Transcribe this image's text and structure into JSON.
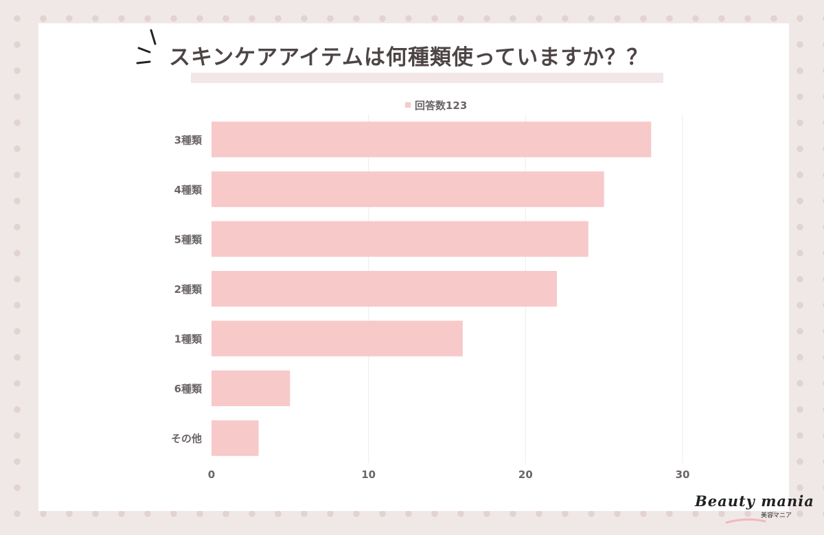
{
  "title": "スキンケアアイテムは何種類使っていますか？？",
  "chart_data": {
    "type": "bar",
    "orientation": "horizontal",
    "categories": [
      "3種類",
      "4種類",
      "5種類",
      "2種類",
      "1種類",
      "6種類",
      "その他"
    ],
    "series": [
      {
        "name": "回答数123",
        "values": [
          28,
          25,
          24,
          22,
          16,
          5,
          3
        ]
      }
    ],
    "xlim": [
      0,
      30
    ],
    "xticks": [
      0,
      10,
      20,
      30
    ],
    "grid": true,
    "legend_position": "top-center"
  },
  "colors": {
    "bar": "#f8c9c9",
    "grid": "#ececec",
    "tick_text": "#6b6565",
    "title_text": "#4d4545"
  },
  "logo": {
    "text": "Beauty mania",
    "sub": "美容マニア"
  }
}
